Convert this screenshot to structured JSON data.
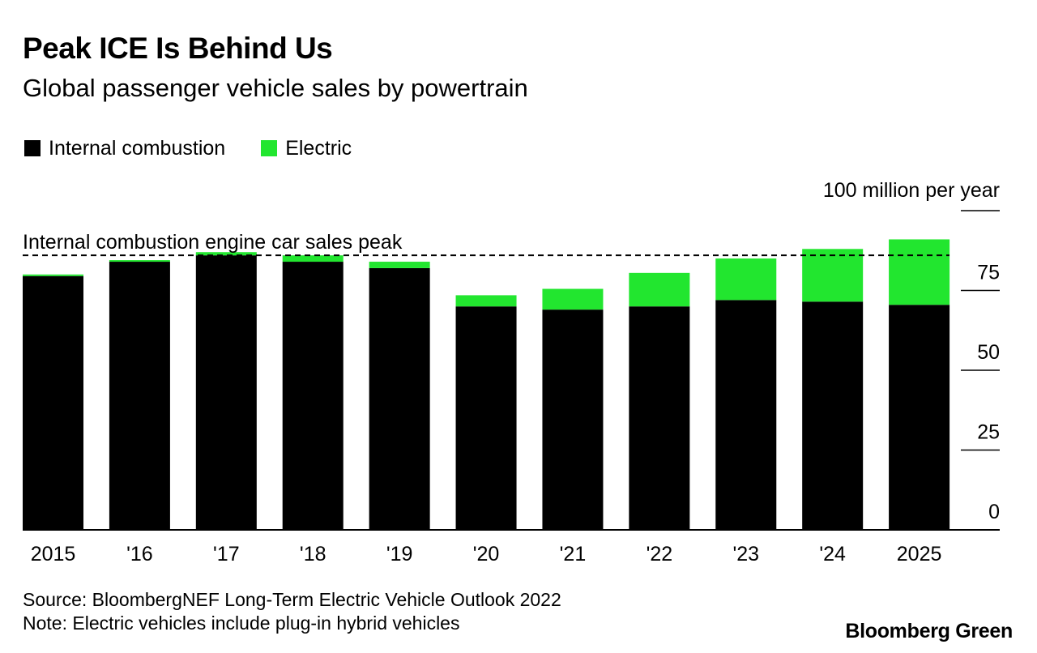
{
  "header": {
    "title": "Peak ICE Is Behind Us",
    "subtitle": "Global passenger vehicle sales by powertrain"
  },
  "legend": [
    {
      "label": "Internal combustion",
      "color": "#000000"
    },
    {
      "label": "Electric",
      "color": "#22e62f"
    }
  ],
  "chart_data": {
    "type": "bar",
    "stacked": true,
    "title": "Peak ICE Is Behind Us",
    "subtitle": "Global passenger vehicle sales by powertrain",
    "categories": [
      "2015",
      "'16",
      "'17",
      "'18",
      "'19",
      "'20",
      "'21",
      "'22",
      "'23",
      "'24",
      "2025"
    ],
    "series": [
      {
        "name": "Internal combustion",
        "color": "#000000",
        "values": [
          79.5,
          84,
          86,
          84,
          82,
          70,
          69,
          70,
          72,
          71.5,
          70.5
        ]
      },
      {
        "name": "Electric",
        "color": "#22e62f",
        "values": [
          0.5,
          0.5,
          1,
          2,
          2,
          3.5,
          6.5,
          10.5,
          13,
          16.5,
          20.5
        ]
      }
    ],
    "ylim": [
      0,
      100
    ],
    "yticks": [
      0,
      25,
      50,
      75
    ],
    "ytick_labels": [
      "0",
      "25",
      "50",
      "75"
    ],
    "y_unit_label": "100 million per year",
    "axis_position": "right",
    "reference_line": {
      "label": "Internal combustion engine car sales peak",
      "value": 86,
      "style": "dashed"
    }
  },
  "footer": {
    "source": "Source: BloombergNEF Long-Term Electric Vehicle Outlook 2022",
    "note": "Note: Electric vehicles include plug-in hybrid vehicles",
    "brand": "Bloomberg Green"
  }
}
